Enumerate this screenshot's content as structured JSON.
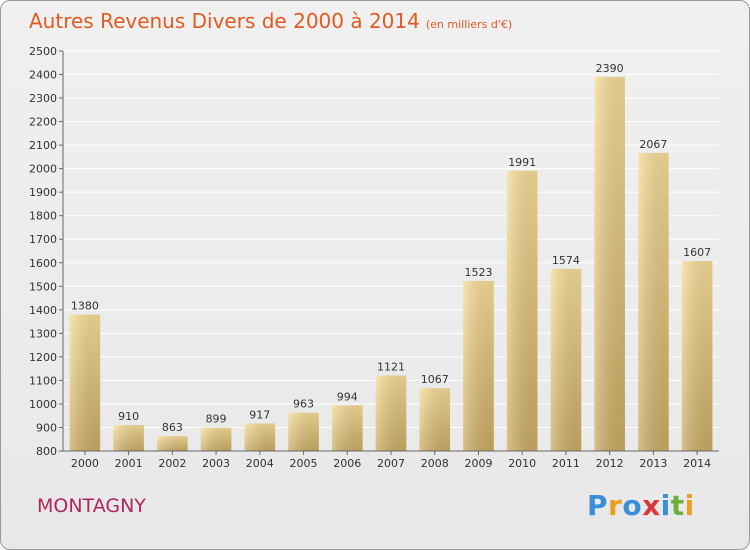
{
  "title": "Autres Revenus Divers de 2000 à 2014",
  "unit_note": "(en milliers d'€)",
  "commune": "MONTAGNY",
  "logo": {
    "text": "Proxiti",
    "letters": [
      {
        "char": "P",
        "color": "#3a8fd6"
      },
      {
        "char": "r",
        "color": "#e8a020"
      },
      {
        "char": "o",
        "color": "#3a8fd6"
      },
      {
        "char": "x",
        "color": "#d83a3a"
      },
      {
        "char": "i",
        "color": "#3a8fd6"
      },
      {
        "char": "t",
        "color": "#6bb03a"
      },
      {
        "char": "i",
        "color": "#e8a020"
      }
    ]
  },
  "colors": {
    "title": "#e05a22",
    "commune": "#b0265e",
    "bar_light": "#f6dc96",
    "bar_dark": "#c9ab63",
    "grid": "#ffffff",
    "axis_text": "#333333"
  },
  "chart_data": {
    "type": "bar",
    "title": "Autres Revenus Divers de 2000 à 2014",
    "subtitle": "(en milliers d'€)",
    "categories": [
      "2000",
      "2001",
      "2002",
      "2003",
      "2004",
      "2005",
      "2006",
      "2007",
      "2008",
      "2009",
      "2010",
      "2011",
      "2012",
      "2013",
      "2014"
    ],
    "values": [
      1380,
      910,
      863,
      899,
      917,
      963,
      994,
      1121,
      1067,
      1523,
      1991,
      1574,
      2390,
      2067,
      1607
    ],
    "ylim": [
      800,
      2500
    ],
    "yticks": [
      800,
      900,
      1000,
      1100,
      1200,
      1300,
      1400,
      1500,
      1600,
      1700,
      1800,
      1900,
      2000,
      2100,
      2200,
      2300,
      2400,
      2500
    ],
    "grid": true,
    "data_labels": true,
    "xlabel": "",
    "ylabel": ""
  }
}
